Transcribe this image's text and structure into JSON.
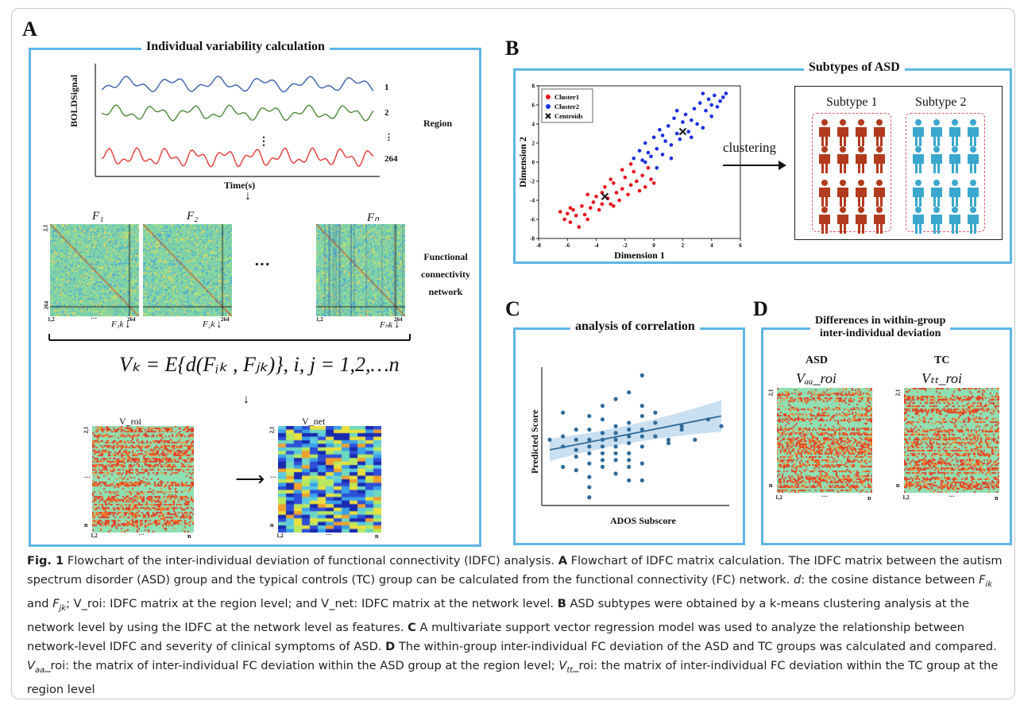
{
  "panels": {
    "A": {
      "letter": "A",
      "title": "Individual variability calculation",
      "bold_y_label": "BOLDSignal",
      "time_label": "Time(s)",
      "region_label": "Region",
      "region_numbers": [
        "1",
        "2",
        "⋮",
        "264"
      ],
      "matrix_labels": [
        "F₁",
        "F₂",
        "Fₙ"
      ],
      "matrix_sub_labels": [
        "F₁k",
        "F₂k",
        "Fₙk"
      ],
      "ellipsis": "···",
      "fc_label_lines": [
        "Functional",
        "connectivity",
        "network"
      ],
      "tick_top": "2,1",
      "tick_mid": "···",
      "tick_bottom_left": "1,2",
      "tick_end": "264",
      "formula": "Vₖ = E{d(Fᵢₖ , Fⱼₖ)}, i, j = 1,2,…n",
      "v_roi_label": "V_roi",
      "v_net_label": "V_net",
      "tick_n": "n",
      "tick_dots": "···"
    },
    "B": {
      "letter": "B",
      "title": "Subtypes of ASD",
      "legend": [
        "Cluster1",
        "Cluster2",
        "Centroids"
      ],
      "xlabel": "Dimension 1",
      "ylabel": "Dimension 2",
      "clustering_label": "clustering",
      "subtype1": "Subtype 1",
      "subtype2": "Subtype 2",
      "colors": {
        "cluster1": "#e8121c",
        "cluster2": "#1a2ee0",
        "subtype1": "#b23a1e",
        "subtype2": "#3aa8cc"
      }
    },
    "C": {
      "letter": "C",
      "title": "analysis of correlation",
      "xlabel": "ADOS  Subscore",
      "ylabel": "Predicted Score"
    },
    "D": {
      "letter": "D",
      "title_line1": "Differences in within-group",
      "title_line2": "inter-individual deviation",
      "group1": "ASD",
      "group2": "TC",
      "matrix1_label": "Vₐₐ_roi",
      "matrix2_label": "Vₜₜ_roi"
    }
  },
  "chart_data": [
    {
      "type": "scatter",
      "title": "",
      "xlabel": "Dimension 1",
      "ylabel": "Dimension 2",
      "xlim": [
        -8,
        6
      ],
      "ylim": [
        -8,
        8
      ],
      "xticks": [
        -8,
        -6,
        -4,
        -2,
        0,
        2,
        4,
        6
      ],
      "yticks": [
        -8,
        -6,
        -4,
        -2,
        0,
        2,
        4,
        6,
        8
      ],
      "legend_position": "top-left",
      "series": [
        {
          "name": "Cluster1",
          "color": "#e8121c",
          "points": [
            [
              -6.5,
              -5.2
            ],
            [
              -6.2,
              -6.0
            ],
            [
              -6.0,
              -5.4
            ],
            [
              -5.8,
              -6.3
            ],
            [
              -5.6,
              -5.0
            ],
            [
              -5.4,
              -5.6
            ],
            [
              -5.2,
              -6.8
            ],
            [
              -5.0,
              -4.6
            ],
            [
              -4.8,
              -5.5
            ],
            [
              -4.6,
              -6.0
            ],
            [
              -4.4,
              -4.8
            ],
            [
              -4.2,
              -4.2
            ],
            [
              -4.0,
              -3.6
            ],
            [
              -3.8,
              -5.0
            ],
            [
              -3.6,
              -4.4
            ],
            [
              -3.4,
              -2.6
            ],
            [
              -3.2,
              -3.8
            ],
            [
              -3.0,
              -4.4
            ],
            [
              -2.8,
              -2.2
            ],
            [
              -2.6,
              -3.2
            ],
            [
              -2.4,
              -4.0
            ],
            [
              -2.2,
              -2.8
            ],
            [
              -2.0,
              -1.6
            ],
            [
              -1.8,
              -3.4
            ],
            [
              -1.6,
              -2.4
            ],
            [
              -1.4,
              -1.0
            ],
            [
              -1.2,
              -2.0
            ],
            [
              -1.0,
              -3.0
            ],
            [
              -0.8,
              -1.4
            ],
            [
              -0.6,
              -2.6
            ],
            [
              -0.4,
              -0.6
            ],
            [
              -0.2,
              -1.8
            ],
            [
              0.0,
              -2.2
            ],
            [
              -3.6,
              -3.2
            ],
            [
              -2.8,
              -4.6
            ],
            [
              -1.6,
              -0.2
            ],
            [
              -4.6,
              -3.4
            ],
            [
              -5.8,
              -4.8
            ],
            [
              -3.0,
              -1.8
            ],
            [
              -2.2,
              -0.8
            ]
          ]
        },
        {
          "name": "Cluster2",
          "color": "#1a2ee0",
          "points": [
            [
              -1.4,
              0.4
            ],
            [
              -1.0,
              1.2
            ],
            [
              -0.8,
              0.2
            ],
            [
              -0.6,
              2.0
            ],
            [
              -0.4,
              1.0
            ],
            [
              -0.2,
              0.6
            ],
            [
              0.0,
              2.6
            ],
            [
              0.2,
              1.4
            ],
            [
              0.4,
              3.4
            ],
            [
              0.6,
              0.8
            ],
            [
              0.8,
              2.2
            ],
            [
              1.0,
              3.8
            ],
            [
              1.2,
              1.8
            ],
            [
              1.4,
              4.6
            ],
            [
              1.6,
              3.0
            ],
            [
              1.8,
              2.4
            ],
            [
              2.0,
              4.2
            ],
            [
              2.2,
              5.0
            ],
            [
              2.4,
              3.2
            ],
            [
              2.6,
              2.6
            ],
            [
              2.8,
              5.6
            ],
            [
              3.0,
              4.0
            ],
            [
              3.2,
              6.2
            ],
            [
              3.4,
              3.6
            ],
            [
              3.6,
              5.4
            ],
            [
              3.8,
              6.6
            ],
            [
              4.0,
              4.8
            ],
            [
              4.2,
              7.0
            ],
            [
              4.4,
              5.8
            ],
            [
              4.6,
              6.4
            ],
            [
              4.8,
              6.8
            ],
            [
              5.0,
              7.2
            ],
            [
              0.2,
              -0.6
            ],
            [
              -0.6,
              0.0
            ],
            [
              1.6,
              5.4
            ],
            [
              2.6,
              4.4
            ],
            [
              3.4,
              7.2
            ],
            [
              4.0,
              6.0
            ],
            [
              1.2,
              0.4
            ],
            [
              0.6,
              2.8
            ]
          ]
        },
        {
          "name": "Centroids",
          "color": "#111111",
          "points": [
            [
              -3.4,
              -3.6
            ],
            [
              2.0,
              3.2
            ]
          ]
        }
      ]
    },
    {
      "type": "scatter",
      "title": "analysis of correlation",
      "xlabel": "ADOS  Subscore",
      "ylabel": "Predicted Score",
      "series": [
        {
          "name": "",
          "color": "#2f6b9a",
          "points": [
            [
              0,
              9.0
            ],
            [
              2,
              13.0
            ],
            [
              2,
              9.5
            ],
            [
              2,
              8.0
            ],
            [
              2,
              5.0
            ],
            [
              4,
              10.5
            ],
            [
              4,
              9.0
            ],
            [
              4,
              7.5
            ],
            [
              4,
              6.5
            ],
            [
              4,
              4.5
            ],
            [
              6,
              12.5
            ],
            [
              6,
              10.5
            ],
            [
              6,
              9.0
            ],
            [
              6,
              8.0
            ],
            [
              6,
              7.0
            ],
            [
              6,
              5.5
            ],
            [
              6,
              3.5
            ],
            [
              6,
              2.0
            ],
            [
              6,
              0.5
            ],
            [
              8,
              14.0
            ],
            [
              8,
              12.0
            ],
            [
              8,
              10.0
            ],
            [
              8,
              9.0
            ],
            [
              8,
              8.0
            ],
            [
              8,
              7.0
            ],
            [
              8,
              6.0
            ],
            [
              8,
              5.0
            ],
            [
              10,
              15.0
            ],
            [
              10,
              11.0
            ],
            [
              10,
              10.0
            ],
            [
              10,
              9.0
            ],
            [
              10,
              8.0
            ],
            [
              10,
              7.0
            ],
            [
              10,
              6.0
            ],
            [
              10,
              4.0
            ],
            [
              12,
              16.0
            ],
            [
              12,
              11.5
            ],
            [
              12,
              10.5
            ],
            [
              12,
              9.5
            ],
            [
              12,
              8.5
            ],
            [
              12,
              7.0
            ],
            [
              12,
              6.0
            ],
            [
              12,
              5.0
            ],
            [
              12,
              3.0
            ],
            [
              14,
              18.5
            ],
            [
              14,
              14.0
            ],
            [
              14,
              12.5
            ],
            [
              14,
              10.5
            ],
            [
              14,
              9.5
            ],
            [
              14,
              8.0
            ],
            [
              14,
              5.5
            ],
            [
              14,
              3.0
            ],
            [
              16,
              13.0
            ],
            [
              16,
              11.5
            ],
            [
              16,
              9.5
            ],
            [
              18,
              9.0
            ],
            [
              18,
              8.5
            ],
            [
              20,
              11.0
            ],
            [
              20,
              10.5
            ],
            [
              22,
              9.0
            ],
            [
              24,
              12.0
            ],
            [
              26,
              11.0
            ]
          ]
        }
      ],
      "regression_line": {
        "x": [
          0,
          26
        ],
        "y": [
          7.5,
          12.5
        ]
      }
    }
  ],
  "caption": {
    "fig_label": "Fig. 1",
    "segments": [
      {
        "t": "Fig. 1",
        "s": "b"
      },
      {
        "t": "  Flowchart of the inter-individual deviation of functional connectivity (IDFC) analysis. ",
        "s": ""
      },
      {
        "t": "A",
        "s": "b"
      },
      {
        "t": " Flowchart of IDFC matrix calculation. The IDFC matrix between the autism spectrum disorder (ASD) group and the typical controls (TC) group can be calculated from the functional connectivity (FC) network. ",
        "s": ""
      },
      {
        "t": "d",
        "s": "i"
      },
      {
        "t": ": the cosine distance between ",
        "s": ""
      },
      {
        "t": "F",
        "s": "i"
      },
      {
        "t": "ik",
        "s": "sub"
      },
      {
        "t": " and ",
        "s": ""
      },
      {
        "t": "F",
        "s": "i"
      },
      {
        "t": "jk",
        "s": "sub"
      },
      {
        "t": "; V_roi: IDFC matrix at the region level; and V_net: IDFC matrix at the network level. ",
        "s": ""
      },
      {
        "t": "B",
        "s": "b"
      },
      {
        "t": " ASD subtypes were obtained by a k-means clustering analysis at the network level by using the IDFC at the network level as features. ",
        "s": ""
      },
      {
        "t": "C",
        "s": "b"
      },
      {
        "t": " A multivariate support vector regression model was used to analyze the relationship between network-level IDFC and severity of clinical symptoms of ASD. ",
        "s": ""
      },
      {
        "t": "D",
        "s": "b"
      },
      {
        "t": " The within-group inter-individual FC deviation of the ASD and TC groups was calculated and compared. ",
        "s": ""
      },
      {
        "t": "V",
        "s": "i"
      },
      {
        "t": "aa",
        "s": "sub"
      },
      {
        "t": "_roi: the matrix of inter-individual FC deviation within the ASD group at the region level; ",
        "s": ""
      },
      {
        "t": "V",
        "s": "i"
      },
      {
        "t": "tt",
        "s": "sub"
      },
      {
        "t": "_roi: the matrix of inter-individual FC deviation within the TC group at the region level",
        "s": ""
      }
    ]
  }
}
